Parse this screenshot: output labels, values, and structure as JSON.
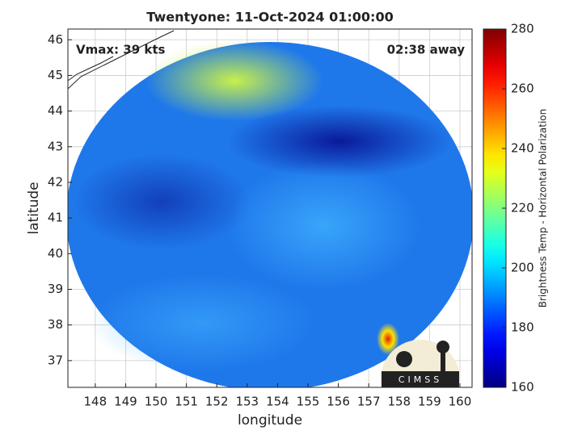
{
  "chart_data": {
    "type": "map",
    "title": "Twentyone: 11-Oct-2024 01:00:00",
    "annotations": [
      "Vmax: 39 kts",
      "02:38 away"
    ],
    "xlabel": "longitude",
    "ylabel": "latitude",
    "xlim": [
      147.1,
      160.4
    ],
    "ylim": [
      36.25,
      46.3
    ],
    "xticks": [
      148,
      149,
      150,
      151,
      152,
      153,
      154,
      155,
      156,
      157,
      158,
      159,
      160
    ],
    "yticks": [
      37,
      38,
      39,
      40,
      41,
      42,
      43,
      44,
      45,
      46
    ],
    "grid": true,
    "colorbar": {
      "label": "Brightness Temp - Horizontal Polarization",
      "colormap": "jet",
      "lim": [
        160,
        280
      ],
      "ticks": [
        160,
        180,
        200,
        220,
        240,
        260,
        280
      ]
    },
    "logo": "CIMSS"
  }
}
